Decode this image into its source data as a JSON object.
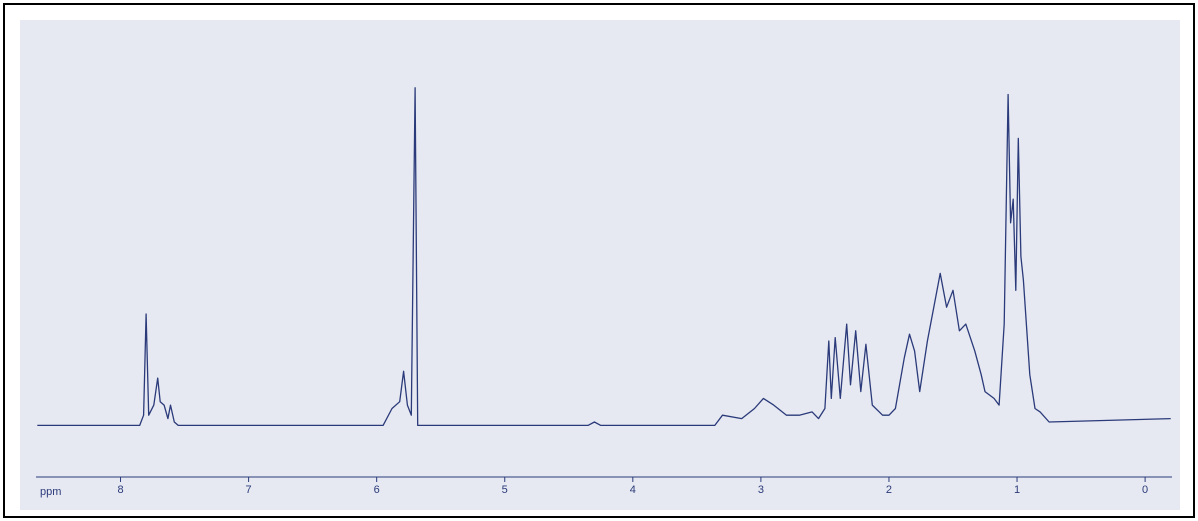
{
  "chart_data": {
    "type": "line",
    "xlabel": "ppm",
    "x": [
      8.65,
      7.85,
      7.82,
      7.8,
      7.78,
      7.74,
      7.71,
      7.69,
      7.66,
      7.63,
      7.61,
      7.58,
      7.55,
      5.95,
      5.88,
      5.82,
      5.79,
      5.76,
      5.73,
      5.7,
      5.68,
      4.35,
      4.3,
      4.25,
      3.36,
      3.3,
      3.15,
      3.05,
      2.98,
      2.9,
      2.8,
      2.7,
      2.6,
      2.55,
      2.5,
      2.47,
      2.45,
      2.42,
      2.38,
      2.33,
      2.3,
      2.26,
      2.22,
      2.18,
      2.13,
      2.05,
      2.0,
      1.95,
      1.88,
      1.84,
      1.8,
      1.76,
      1.7,
      1.64,
      1.6,
      1.55,
      1.5,
      1.45,
      1.4,
      1.33,
      1.28,
      1.25,
      1.18,
      1.14,
      1.1,
      1.07,
      1.05,
      1.03,
      1.01,
      0.99,
      0.97,
      0.95,
      0.9,
      0.86,
      0.82,
      0.75,
      -0.2
    ],
    "series": [
      {
        "color": "#2b3a7a",
        "values": [
          0,
          0,
          3,
          33,
          3,
          6,
          14,
          7,
          6,
          2,
          6,
          1,
          0,
          0,
          5,
          7,
          16,
          6,
          3,
          100,
          0,
          0,
          1,
          0,
          0,
          3,
          2,
          5,
          8,
          6,
          3,
          3,
          4,
          2,
          5,
          25,
          8,
          26,
          8,
          30,
          12,
          28,
          10,
          24,
          6,
          3,
          3,
          5,
          20,
          27,
          22,
          10,
          25,
          37,
          45,
          35,
          40,
          28,
          30,
          22,
          15,
          10,
          8,
          6,
          30,
          98,
          60,
          67,
          40,
          85,
          50,
          43,
          15,
          5,
          4,
          1,
          2
        ]
      }
    ],
    "xlim": [
      8.66,
      -0.21
    ],
    "ylim": [
      -15,
      110
    ],
    "xticks": [
      8,
      7,
      6,
      5,
      4,
      3,
      2,
      1,
      0
    ]
  }
}
